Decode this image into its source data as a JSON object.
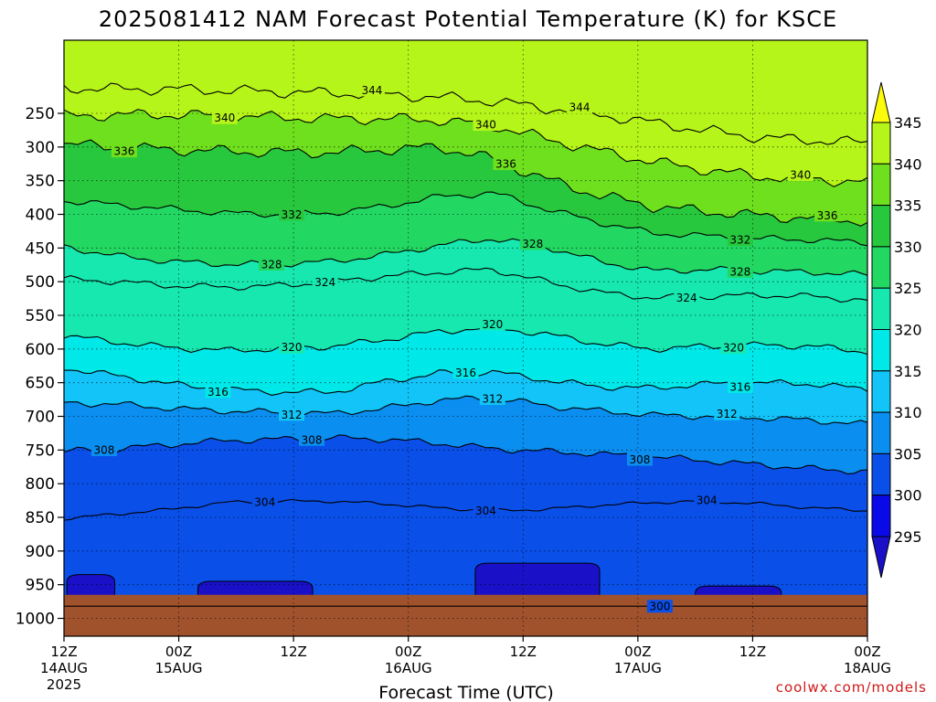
{
  "chart_data": {
    "type": "contour",
    "title": "2025081412 NAM Forecast Potential Temperature (K) for KSCE",
    "xlabel": "Forecast Time (UTC)",
    "ylabel": "",
    "x_ticks": [
      {
        "hour": 0,
        "line1": "12Z",
        "line2": "14AUG",
        "line3": "2025"
      },
      {
        "hour": 12,
        "line1": "00Z",
        "line2": "15AUG",
        "line3": ""
      },
      {
        "hour": 24,
        "line1": "12Z",
        "line2": "",
        "line3": ""
      },
      {
        "hour": 36,
        "line1": "00Z",
        "line2": "16AUG",
        "line3": ""
      },
      {
        "hour": 48,
        "line1": "12Z",
        "line2": "",
        "line3": ""
      },
      {
        "hour": 60,
        "line1": "00Z",
        "line2": "17AUG",
        "line3": ""
      },
      {
        "hour": 72,
        "line1": "12Z",
        "line2": "",
        "line3": ""
      },
      {
        "hour": 84,
        "line1": "00Z",
        "line2": "18AUG",
        "line3": ""
      }
    ],
    "x_range_hours": [
      0,
      84
    ],
    "y_axis": "pressure (hPa), decreasing upward",
    "y_ticks": [
      250,
      300,
      350,
      400,
      450,
      500,
      550,
      600,
      650,
      700,
      750,
      800,
      850,
      900,
      950,
      1000
    ],
    "ylim": [
      1015,
      200
    ],
    "grid": "dotted",
    "fill_levels": [
      295,
      300,
      305,
      310,
      315,
      320,
      325,
      330,
      335,
      340,
      345
    ],
    "fill_colors": [
      "#1a10c8",
      "#0a0ae8",
      "#0a4fe8",
      "#0a8ef0",
      "#12c4f8",
      "#00e8e8",
      "#16e8b0",
      "#22d862",
      "#28c83e",
      "#6fe01e",
      "#b6f51a",
      "#fbfb0a"
    ],
    "colorbar": {
      "ticks": [
        345,
        340,
        335,
        330,
        325,
        320,
        315,
        310,
        305,
        300,
        295
      ]
    },
    "contour_interval": 4,
    "series": [
      {
        "theta": 300,
        "values": [
          982,
          982,
          982,
          982,
          982,
          982,
          982,
          982,
          982,
          982,
          982,
          982,
          982,
          982,
          982,
          982
        ]
      },
      {
        "theta": 304,
        "values": [
          852,
          845,
          838,
          828,
          826,
          826,
          830,
          836,
          840,
          838,
          832,
          828,
          826,
          830,
          836,
          840
        ]
      },
      {
        "theta": 308,
        "values": [
          752,
          748,
          742,
          736,
          734,
          732,
          734,
          740,
          748,
          752,
          756,
          760,
          766,
          772,
          778,
          782
        ]
      },
      {
        "theta": 312,
        "values": [
          680,
          682,
          688,
          692,
          694,
          696,
          688,
          676,
          672,
          684,
          692,
          698,
          700,
          702,
          706,
          712
        ]
      },
      {
        "theta": 316,
        "values": [
          628,
          640,
          652,
          660,
          664,
          664,
          648,
          636,
          634,
          646,
          656,
          658,
          652,
          650,
          652,
          660
        ]
      },
      {
        "theta": 320,
        "values": [
          580,
          590,
          598,
          602,
          600,
          596,
          586,
          574,
          568,
          578,
          592,
          600,
          596,
          594,
          596,
          604
        ]
      },
      {
        "theta": 324,
        "values": [
          496,
          500,
          506,
          508,
          506,
          500,
          492,
          486,
          482,
          500,
          516,
          524,
          522,
          520,
          522,
          528
        ]
      },
      {
        "theta": 328,
        "values": [
          448,
          462,
          470,
          474,
          474,
          470,
          460,
          446,
          436,
          448,
          470,
          484,
          482,
          484,
          486,
          490
        ]
      },
      {
        "theta": 332,
        "values": [
          380,
          386,
          392,
          398,
          400,
          398,
          388,
          374,
          368,
          392,
          412,
          428,
          432,
          436,
          438,
          442
        ]
      },
      {
        "theta": 336,
        "values": [
          296,
          300,
          304,
          306,
          308,
          308,
          304,
          300,
          318,
          348,
          372,
          388,
          396,
          402,
          406,
          410
        ]
      },
      {
        "theta": 340,
        "values": [
          254,
          252,
          252,
          254,
          256,
          258,
          258,
          260,
          268,
          288,
          306,
          322,
          334,
          344,
          348,
          352
        ]
      },
      {
        "theta": 344,
        "values": [
          212,
          214,
          214,
          216,
          218,
          220,
          222,
          226,
          232,
          242,
          252,
          264,
          276,
          286,
          290,
          294
        ]
      }
    ],
    "series_x_hours": [
      0,
      5.6,
      11.2,
      16.8,
      22.4,
      28,
      33.6,
      39.2,
      44.8,
      50.4,
      56,
      61.6,
      67.2,
      72.8,
      78.4,
      84
    ],
    "contour_labels": [
      {
        "text": "344",
        "theta": 344,
        "hour": 32
      },
      {
        "text": "344",
        "theta": 344,
        "hour": 54
      },
      {
        "text": "340",
        "theta": 340,
        "hour": 17
      },
      {
        "text": "340",
        "theta": 340,
        "hour": 44
      },
      {
        "text": "340",
        "theta": 340,
        "hour": 77
      },
      {
        "text": "336",
        "theta": 336,
        "hour": 6
      },
      {
        "text": "336",
        "theta": 336,
        "hour": 46
      },
      {
        "text": "336",
        "theta": 336,
        "hour": 80
      },
      {
        "text": "332",
        "theta": 332,
        "hour": 24
      },
      {
        "text": "332",
        "theta": 332,
        "hour": 71
      },
      {
        "text": "328",
        "theta": 328,
        "hour": 22
      },
      {
        "text": "328",
        "theta": 328,
        "hour": 49
      },
      {
        "text": "328",
        "theta": 328,
        "hour": 71
      },
      {
        "text": "324",
        "theta": 324,
        "hour": 27
      },
      {
        "text": "324",
        "theta": 324,
        "hour": 65
      },
      {
        "text": "320",
        "theta": 320,
        "hour": 24
      },
      {
        "text": "320",
        "theta": 320,
        "hour": 45
      },
      {
        "text": "320",
        "theta": 320,
        "hour": 70
      },
      {
        "text": "316",
        "theta": 316,
        "hour": 16
      },
      {
        "text": "316",
        "theta": 316,
        "hour": 42
      },
      {
        "text": "316",
        "theta": 316,
        "hour": 71
      },
      {
        "text": "312",
        "theta": 312,
        "hour": 24
      },
      {
        "text": "312",
        "theta": 312,
        "hour": 45
      },
      {
        "text": "312",
        "theta": 312,
        "hour": 69
      },
      {
        "text": "308",
        "theta": 308,
        "hour": 4
      },
      {
        "text": "308",
        "theta": 308,
        "hour": 26
      },
      {
        "text": "308",
        "theta": 308,
        "hour": 60
      },
      {
        "text": "304",
        "theta": 304,
        "hour": 21
      },
      {
        "text": "304",
        "theta": 304,
        "hour": 44
      },
      {
        "text": "304",
        "theta": 304,
        "hour": 67
      },
      {
        "text": "300",
        "theta": 300,
        "hour": 62
      }
    ],
    "cold_pockets": [
      {
        "hour_start": 0.3,
        "hour_end": 5.3,
        "top_hpa": 935
      },
      {
        "hour_start": 14,
        "hour_end": 26,
        "top_hpa": 945
      },
      {
        "hour_start": 43,
        "hour_end": 56,
        "top_hpa": 918
      },
      {
        "hour_start": 66,
        "hour_end": 75,
        "top_hpa": 952
      }
    ],
    "ground": {
      "top_hpa": 965,
      "color": "#a0522d"
    }
  },
  "credit": "coolwx.com/models"
}
